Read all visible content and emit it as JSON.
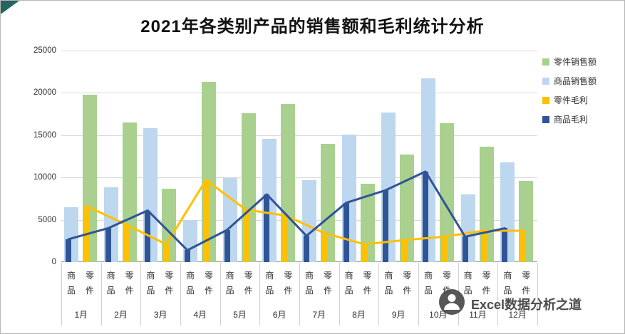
{
  "title": "2021年各类别产品的销售额和毛利统计分析",
  "watermark": {
    "logo": "wechat-person-logo",
    "text": "Excel数据分析之道"
  },
  "legend": {
    "position": "top-right",
    "items": [
      {
        "label": "零件销售额",
        "color": "#A9D08E"
      },
      {
        "label": "商品销售额",
        "color": "#BDD7EE"
      },
      {
        "label": "零件毛利",
        "color": "#FFC000"
      },
      {
        "label": "商品毛利",
        "color": "#2F5597"
      }
    ]
  },
  "chart_data": {
    "type": "bar",
    "combo": "clustered bars with narrow profit bars + line overlay, two-level category axis",
    "title": "2021年各类别产品的销售额和毛利统计分析",
    "categories": [
      "1月",
      "2月",
      "3月",
      "4月",
      "5月",
      "6月",
      "7月",
      "8月",
      "9月",
      "10月",
      "11月",
      "12月"
    ],
    "sub_categories": [
      "商品",
      "零件"
    ],
    "series": [
      {
        "name": "商品销售额",
        "render": "bar",
        "sub": "商品",
        "color": "#BDD7EE",
        "values": [
          6500,
          8800,
          15800,
          5000,
          9900,
          14600,
          9700,
          15100,
          17700,
          21700,
          8000,
          11800
        ]
      },
      {
        "name": "零件销售额",
        "render": "bar",
        "sub": "零件",
        "color": "#A9D08E",
        "values": [
          19800,
          16500,
          8700,
          21300,
          17600,
          18700,
          14000,
          9300,
          12700,
          16400,
          13600,
          9600
        ]
      },
      {
        "name": "零件毛利",
        "render": "bar+line",
        "sub": "零件",
        "color": "#FFC000",
        "values": [
          6600,
          4400,
          2100,
          9700,
          6200,
          5500,
          3400,
          2100,
          2600,
          3000,
          3700,
          3700
        ]
      },
      {
        "name": "商品毛利",
        "render": "bar+line",
        "sub": "商品",
        "color": "#2F5597",
        "values": [
          2700,
          4000,
          6100,
          1400,
          3800,
          8000,
          3100,
          7000,
          8500,
          10700,
          3000,
          4000
        ]
      }
    ],
    "ylim": [
      0,
      25000
    ],
    "yticks": [
      "0",
      "5000",
      "10000",
      "15000",
      "20000",
      "25000"
    ],
    "grid": true,
    "legend_position": "top-right"
  },
  "colors": {
    "gridline": "#D9D9D9",
    "axis_line": "#9E9E9E",
    "corner_triangle": "#25655F",
    "background": "#FFFFFF"
  }
}
